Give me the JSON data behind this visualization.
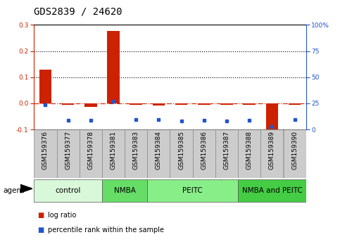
{
  "title": "GDS2839 / 24620",
  "samples": [
    "GSM159376",
    "GSM159377",
    "GSM159378",
    "GSM159381",
    "GSM159383",
    "GSM159384",
    "GSM159385",
    "GSM159386",
    "GSM159387",
    "GSM159388",
    "GSM159389",
    "GSM159390"
  ],
  "log_ratio": [
    0.128,
    -0.005,
    -0.015,
    0.278,
    -0.005,
    -0.008,
    -0.005,
    -0.005,
    -0.005,
    -0.005,
    -0.115,
    -0.005
  ],
  "pct_rank": [
    23.8,
    8.5,
    8.8,
    27.0,
    9.2,
    9.7,
    8.3,
    8.5,
    8.3,
    8.6,
    2.5,
    9.3
  ],
  "ylim_left": [
    -0.1,
    0.3
  ],
  "ylim_right": [
    0,
    100
  ],
  "yticks_left": [
    -0.1,
    0.0,
    0.1,
    0.2,
    0.3
  ],
  "yticks_right": [
    0,
    25,
    50,
    75,
    100
  ],
  "bar_color": "#cc2200",
  "dot_color": "#2255cc",
  "hline_zero_color": "#cc2200",
  "hline_other_color": "#000000",
  "groups": [
    {
      "label": "control",
      "start": 0,
      "end": 3,
      "color": "#d9f7d9"
    },
    {
      "label": "NMBA",
      "start": 3,
      "end": 5,
      "color": "#66dd66"
    },
    {
      "label": "PEITC",
      "start": 5,
      "end": 9,
      "color": "#88ee88"
    },
    {
      "label": "NMBA and PEITC",
      "start": 9,
      "end": 12,
      "color": "#44cc44"
    }
  ],
  "agent_label": "agent",
  "legend_items": [
    {
      "label": "log ratio",
      "color": "#cc2200"
    },
    {
      "label": "percentile rank within the sample",
      "color": "#2255cc"
    }
  ],
  "title_fontsize": 10,
  "tick_fontsize": 6.5,
  "group_fontsize": 7.5,
  "legend_fontsize": 7
}
